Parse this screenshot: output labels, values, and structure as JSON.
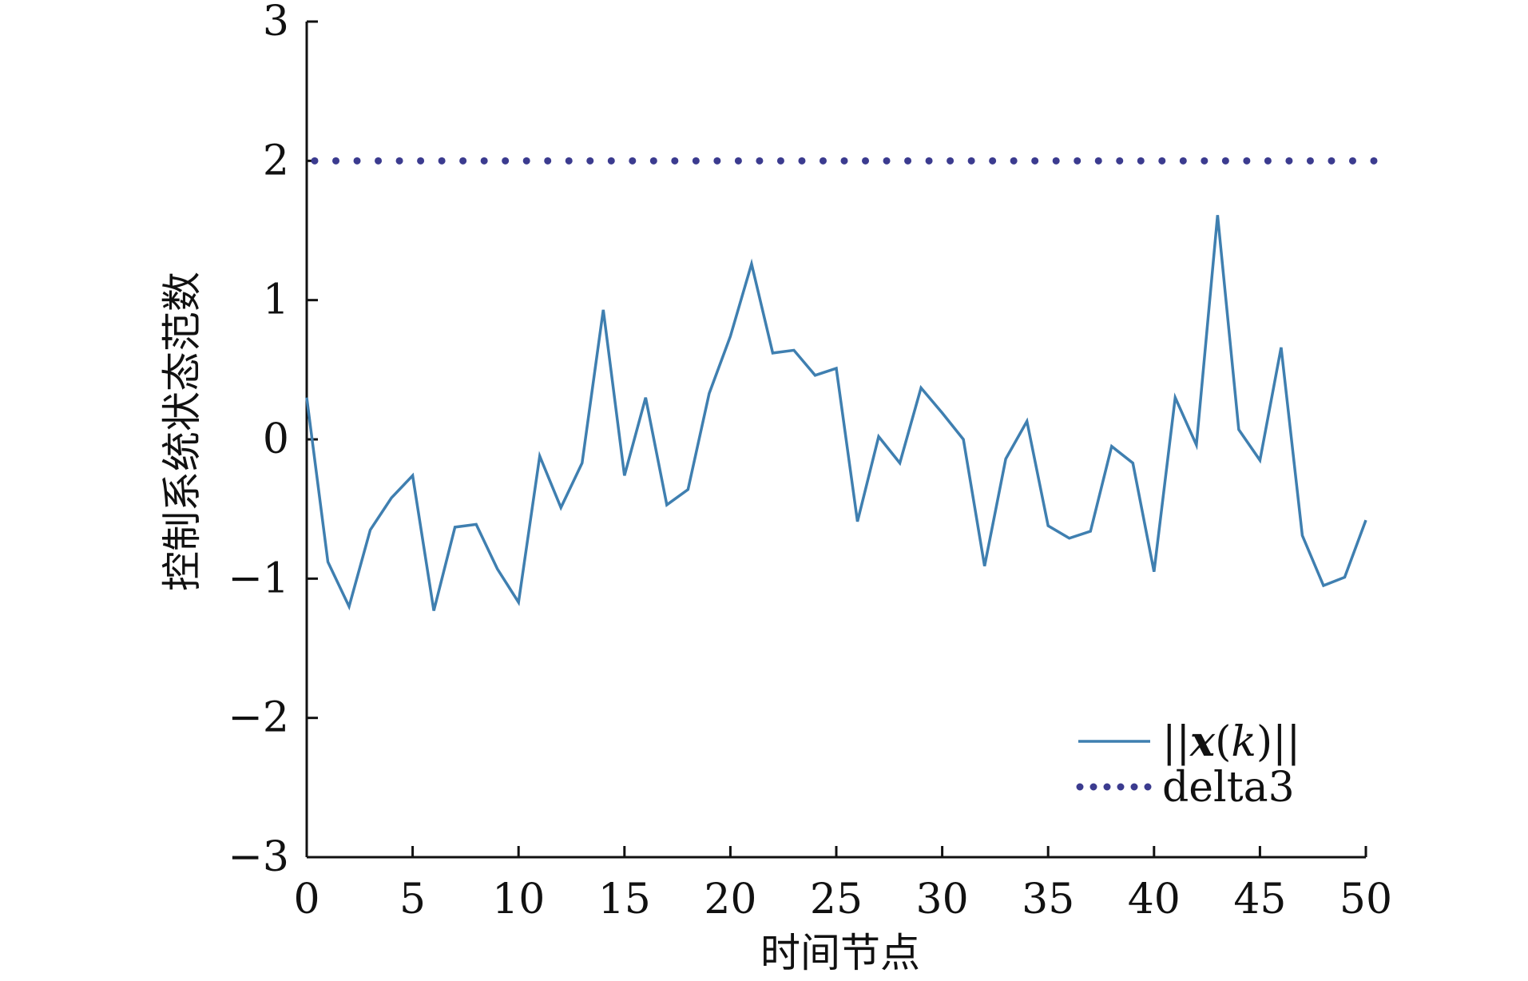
{
  "chart_data": {
    "type": "line",
    "xlabel": "时间节点",
    "ylabel": "控制系统状态范数",
    "xlim": [
      0,
      50
    ],
    "ylim": [
      -3,
      3
    ],
    "x_ticks": [
      0,
      5,
      10,
      15,
      20,
      25,
      30,
      35,
      40,
      45,
      50
    ],
    "y_ticks": [
      3,
      2,
      1,
      0,
      -1,
      -2,
      -3
    ],
    "y_tick_labels": [
      "3",
      "2",
      "1",
      "0",
      "−1",
      "−2",
      "−3"
    ],
    "x_tick_labels": [
      "0",
      "5",
      "10",
      "15",
      "20",
      "25",
      "30",
      "35",
      "40",
      "45",
      "50"
    ],
    "legend_position": "lower-right",
    "grid": false,
    "series": [
      {
        "name": "||x(k)||",
        "style": "solid",
        "color": "#3f7fb0",
        "x": [
          0,
          1,
          2,
          3,
          4,
          5,
          6,
          7,
          8,
          9,
          10,
          11,
          12,
          13,
          14,
          15,
          16,
          17,
          18,
          19,
          20,
          21,
          22,
          23,
          24,
          25,
          26,
          27,
          28,
          29,
          30,
          31,
          32,
          33,
          34,
          35,
          36,
          37,
          38,
          39,
          40,
          41,
          42,
          43,
          44,
          45,
          46,
          47,
          48,
          49,
          50
        ],
        "values": [
          0.3,
          -0.88,
          -1.2,
          -0.65,
          -0.42,
          -0.26,
          -1.23,
          -0.63,
          -0.61,
          -0.93,
          -1.17,
          -0.12,
          -0.49,
          -0.17,
          0.93,
          -0.26,
          0.3,
          -0.47,
          -0.36,
          0.33,
          0.74,
          1.26,
          0.62,
          0.64,
          0.46,
          0.51,
          -0.59,
          0.02,
          -0.17,
          0.37,
          0.19,
          0.0,
          -0.91,
          -0.14,
          0.13,
          -0.62,
          -0.71,
          -0.66,
          -0.05,
          -0.17,
          -0.95,
          0.3,
          -0.04,
          1.61,
          0.07,
          -0.15,
          0.66,
          -0.69,
          -1.05,
          -0.99,
          -0.58
        ]
      },
      {
        "name": "delta3",
        "style": "dotted",
        "color": "#3b3b8f",
        "x": [
          0,
          50
        ],
        "values": [
          2,
          2
        ]
      }
    ],
    "legend": [
      {
        "label_main": "||",
        "label_var": "x",
        "label_paren": "(",
        "label_k": "k",
        "label_close": ")||"
      },
      {
        "label": "delta3"
      }
    ]
  }
}
